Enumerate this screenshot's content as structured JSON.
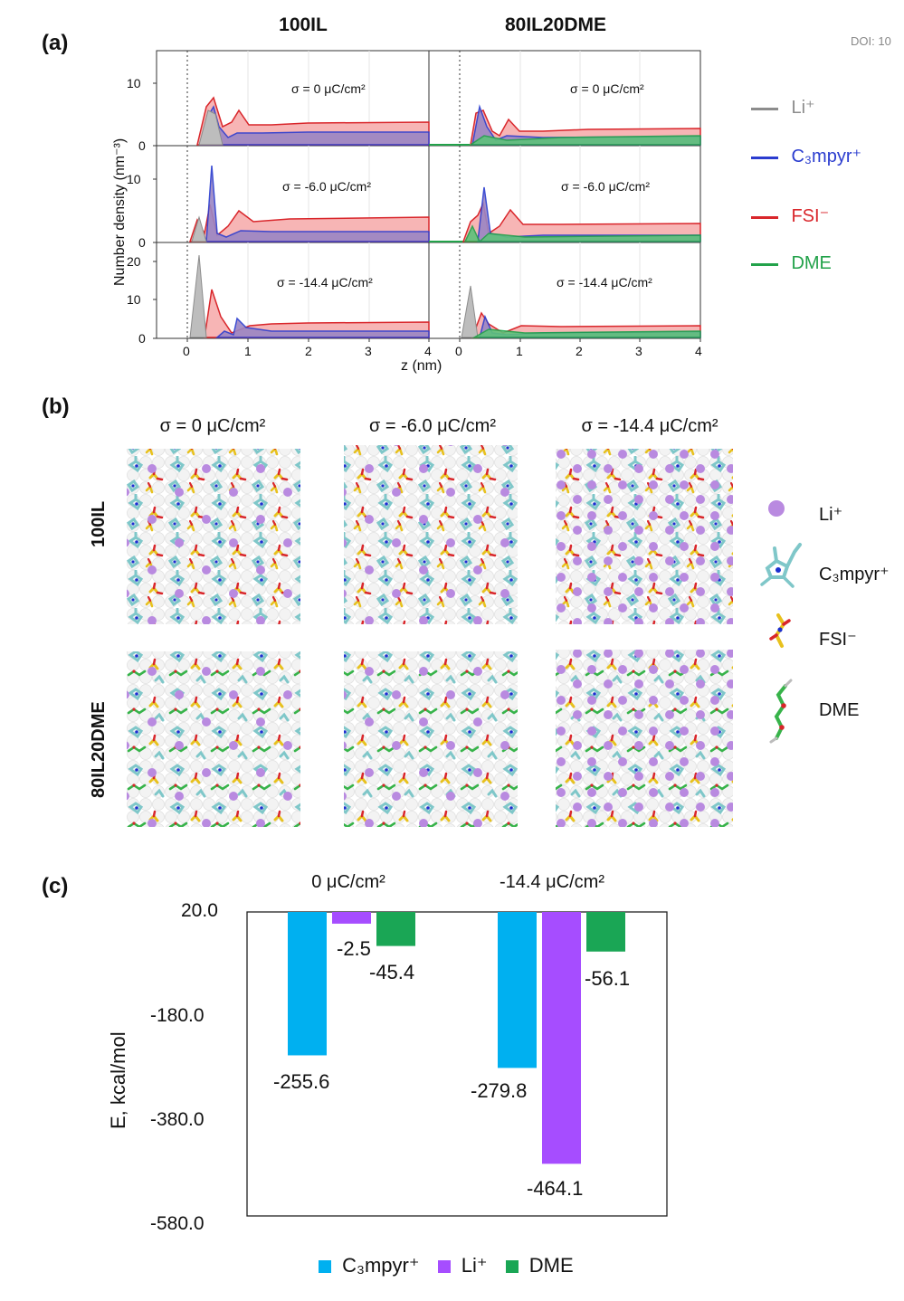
{
  "doi": "DOI: 10",
  "panel_a": {
    "letter": "(a)",
    "columns": [
      "100IL",
      "80IL20DME"
    ],
    "y_axis_label": "Number density (nm⁻³)",
    "x_axis_label": "z (nm)",
    "rows": [
      {
        "sigma": "σ = 0 μC/cm²",
        "yticks": [
          "10",
          "0"
        ]
      },
      {
        "sigma": "σ = -6.0 μC/cm²",
        "yticks": [
          "10",
          "0"
        ]
      },
      {
        "sigma": "σ = -14.4 μC/cm²",
        "yticks": [
          "20",
          "10",
          "0"
        ]
      }
    ],
    "xticks": [
      "0",
      "1",
      "2",
      "3",
      "4"
    ],
    "legend": [
      {
        "label": "Li⁺",
        "color": "#8c8c8c"
      },
      {
        "label": "C₃mpyr⁺",
        "color": "#2a3ccf"
      },
      {
        "label": "FSI⁻",
        "color": "#d9262b"
      },
      {
        "label": "DME",
        "color": "#22a24a"
      }
    ]
  },
  "panel_b": {
    "letter": "(b)",
    "columns": [
      "σ = 0 μC/cm²",
      "σ = -6.0 μC/cm²",
      "σ = -14.4 μC/cm²"
    ],
    "rows": [
      "100IL",
      "80IL20DME"
    ],
    "legend": [
      {
        "label": "Li⁺"
      },
      {
        "label": "C₃mpyr⁺"
      },
      {
        "label": "FSI⁻"
      },
      {
        "label": "DME"
      }
    ]
  },
  "chart_data": {
    "type": "bar",
    "panel": "(c)",
    "title": "",
    "ylabel": "E, kcal/mol",
    "xlabel": "",
    "group_labels": [
      "0 μC/cm²",
      "-14.4 μC/cm²"
    ],
    "ylim": [
      -580.0,
      20.0
    ],
    "yticks": [
      "20.0",
      "-180.0",
      "-380.0",
      "-580.0"
    ],
    "series": [
      {
        "name": "C₃mpyr⁺",
        "color": "#00b0f0",
        "values": [
          -255.6,
          -279.8
        ],
        "labels": [
          "-255.6",
          "-279.8"
        ]
      },
      {
        "name": "Li⁺",
        "color": "#a64dff",
        "values": [
          -2.5,
          -464.1
        ],
        "labels": [
          "-2.5",
          "-464.1"
        ]
      },
      {
        "name": "DME",
        "color": "#1aa655",
        "values": [
          -45.4,
          -56.1
        ],
        "labels": [
          "-45.4",
          "-56.1"
        ]
      }
    ]
  }
}
